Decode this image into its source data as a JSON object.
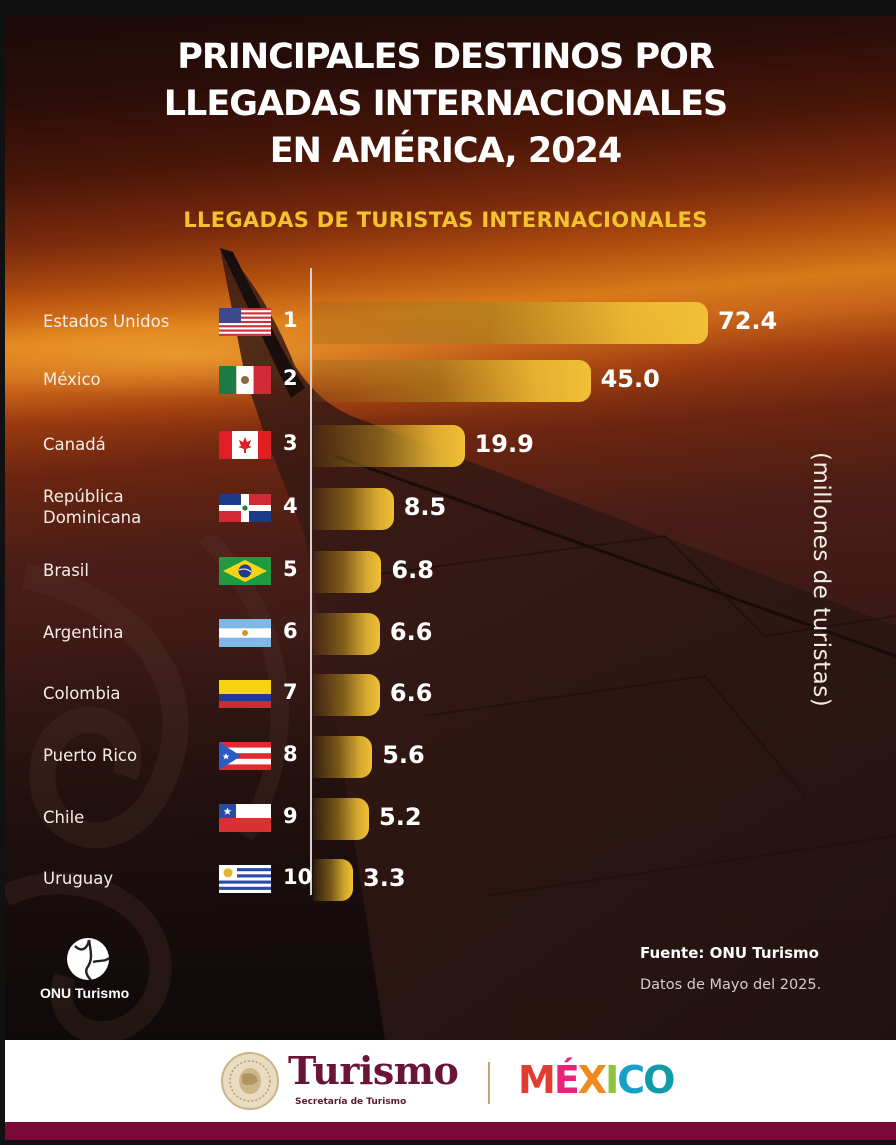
{
  "header": {
    "title_lines": [
      "PRINCIPALES DESTINOS POR",
      "LLEGADAS INTERNACIONALES",
      "EN AMÉRICA, 2024"
    ],
    "subtitle": "LLEGADAS DE TURISTAS INTERNACIONALES"
  },
  "chart_data": {
    "type": "bar",
    "orientation": "horizontal",
    "title": "PRINCIPALES DESTINOS POR LLEGADAS INTERNACIONALES EN AMÉRICA, 2024",
    "subtitle": "LLEGADAS DE TURISTAS INTERNACIONALES",
    "unit_label": "(millones de turistas)",
    "categories": [
      "Estados Unidos",
      "México",
      "Canadá",
      "República Dominicana",
      "Brasil",
      "Argentina",
      "Colombia",
      "Puerto Rico",
      "Chile",
      "Uruguay"
    ],
    "category_lines": [
      [
        "Estados Unidos"
      ],
      [
        "México"
      ],
      [
        "Canadá"
      ],
      [
        "República",
        "Dominicana"
      ],
      [
        "Brasil"
      ],
      [
        "Argentina"
      ],
      [
        "Colombia"
      ],
      [
        "Puerto Rico"
      ],
      [
        "Chile"
      ],
      [
        "Uruguay"
      ]
    ],
    "ranks": [
      "1",
      "2",
      "3",
      "4",
      "5",
      "6",
      "7",
      "8",
      "9",
      "10"
    ],
    "values": [
      72.4,
      45.0,
      19.9,
      8.5,
      6.8,
      6.6,
      6.6,
      5.6,
      5.2,
      3.3
    ],
    "value_labels": [
      "72.4",
      "45.0",
      "19.9",
      "8.5",
      "6.8",
      "6.6",
      "6.6",
      "5.6",
      "5.2",
      "3.3"
    ],
    "flags": [
      "us-flag",
      "mexico-flag",
      "canada-flag",
      "dominican-republic-flag",
      "brazil-flag",
      "argentina-flag",
      "colombia-flag",
      "puerto-rico-flag",
      "chile-flag",
      "uruguay-flag"
    ],
    "bar_color": "#f0c035",
    "grid": false,
    "legend": "none"
  },
  "footer_info": {
    "org_name": "ONU Turismo",
    "source": "Fuente: ONU Turismo",
    "date": "Datos de Mayo del 2025."
  },
  "brand": {
    "turismo": "Turismo",
    "turismo_sub": "Secretaría de Turismo",
    "mexico_letters": [
      "M",
      "É",
      "X",
      "I",
      "C",
      "O"
    ],
    "mexico_colors": [
      "#e23b2f",
      "#e8247a",
      "#f08a1c",
      "#8bc53f",
      "#1aa0c8",
      "#139aa8"
    ],
    "accent_maroon": "#7a0a35"
  }
}
